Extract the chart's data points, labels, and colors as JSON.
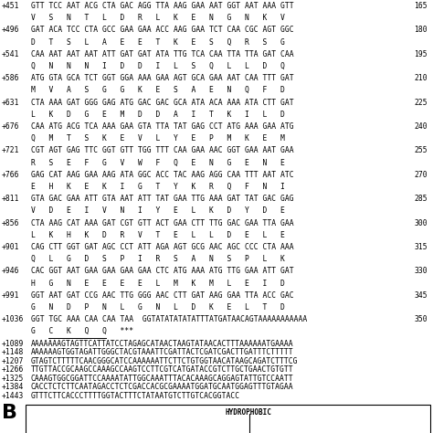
{
  "sequence_lines": [
    [
      "+451",
      "GTT TCC AAT ACG CTA GAC AGG TTA AAG GAA AAT GGT AAT AAA GTT",
      "V   S   N   T   L   D   R   L   K   E   N   G   N   K   V",
      "165"
    ],
    [
      "+496",
      "GAT ACA TCC CTA GCC GAA GAA ACC AAG GAA TCT CAA CGC AGT GGC",
      "D   T   S   L   A   E   E   T   K   E   S   Q   R   S   G",
      "180"
    ],
    [
      "+541",
      "CAA AAT AAT AAT ATT GAT GAT ATA TTG TCA CAA TTA TTA GAT CAA",
      "Q   N   N   N   I   D   D   I   L   S   Q   L   L   D   Q",
      "195"
    ],
    [
      "+586",
      "ATG GTA GCA TCT GGT GGA AAA GAA AGT GCA GAA AAT CAA TTT GAT",
      "M   V   A   S   G   G   K   E   S   A   E   N   Q   F   D",
      "210"
    ],
    [
      "+631",
      "CTA AAA GAT GGG GAG ATG GAC GAC GCA ATA ACA AAA ATA CTT GAT",
      "L   K   D   G   E   M   D   D   A   I   T   K   I   L   D",
      "225"
    ],
    [
      "+676",
      "CAA ATG ACG TCA AAA GAA GTA TTA TAT GAG CCT ATG AAA GAA ATG",
      "Q   M   T   S   K   E   V   L   Y   E   P   M   K   E   M",
      "240"
    ],
    [
      "+721",
      "CGT AGT GAG TTC GGT GTT TGG TTT CAA GAA AAC GGT GAA AAT GAA",
      "R   S   E   F   G   V   W   F   Q   E   N   G   E   N   E",
      "255"
    ],
    [
      "+766",
      "GAG CAT AAG GAA AAG ATA GGC ACC TAC AAG AGG CAA TTT AAT ATC",
      "E   H   K   E   K   I   G   T   Y   K   R   Q   F   N   I",
      "270"
    ],
    [
      "+811",
      "GTA GAC GAA ATT GTA AAT ATT TAT GAA TTG AAA GAT TAT GAC GAG",
      "V   D   E   I   V   N   I   Y   E   L   K   D   Y   D   E",
      "285"
    ],
    [
      "+856",
      "CTA AAG CAT AAA GAT CGT GTT ACT GAA CTT TTG GAC GAA TTA GAA",
      "L   K   H   K   D   R   V   T   E   L   L   D   E   L   E",
      "300"
    ],
    [
      "+901",
      "CAG CTT GGT GAT AGC CCT ATT AGA AGT GCG AAC AGC CCC CTA AAA",
      "Q   L   G   D   S   P   I   R   S   A   N   S   P   L   K",
      "315"
    ],
    [
      "+946",
      "CAC GGT AAT GAA GAA GAA GAA CTC ATG AAA ATG TTG GAA ATT GAT",
      "H   G   N   E   E   E   E   L   M   K   M   L   E   I   D",
      "330"
    ],
    [
      "+991",
      "GGT AAT GAT CCG AAC TTG GGG AAC CTT GAT AAG GAA TTA ACC GAC",
      "G   N   D   P   N   L   G   N   L   D   K   E   L   T   D",
      "345"
    ],
    [
      "+1036",
      "GGT TGC AAA CAA CAA TAA  GGTATATATATATTTATGATAACAGTAAAAAAAAAAA",
      "G   C   K   Q   Q   ***",
      "350"
    ]
  ],
  "utr_lines": [
    [
      "+1089",
      "AAAAAAAGTAGTTCATTATCCTAGAGCATAACTAAGTATAACACTTTAAAAAATGAAAA"
    ],
    [
      "+1148",
      "AAAAAAGTGGTAGATTGGGCTACGTAAATTCGATTACTCGATCGACTTGATTTCTTTTT"
    ],
    [
      "+1207",
      "GTAGTCTTTTTCAACGGGCATCCAAAAAATTCTTCTGTGGTAACATAAGCAGATCTTTCG"
    ],
    [
      "+1266",
      "TTGTTACCGCAAGCCAAAGCCAAGTCCTTCGTCATGATACCGTCTTGCTGAACTGTGTT"
    ],
    [
      "+1325",
      "CAAAGTGGCGGATTCCAAAATATTGGCAAATTTACACAAAGCAGGAGTATTGTCCAATT"
    ],
    [
      "+1384",
      "CACCTCTCTTCAATAGACCTCTCGACCACGCGAAAATGGATGCAATGGAGTTTGTAGAA"
    ],
    [
      "+1443",
      "GTTTCTTCACCCTTTTGGTACTTTCTATAATGTCTTGTCACGGTACC"
    ]
  ],
  "panel_b_label": "B",
  "hydrophobic_label": "HYDROPHOBIC",
  "bg_color": "#ffffff",
  "text_color": "#000000"
}
